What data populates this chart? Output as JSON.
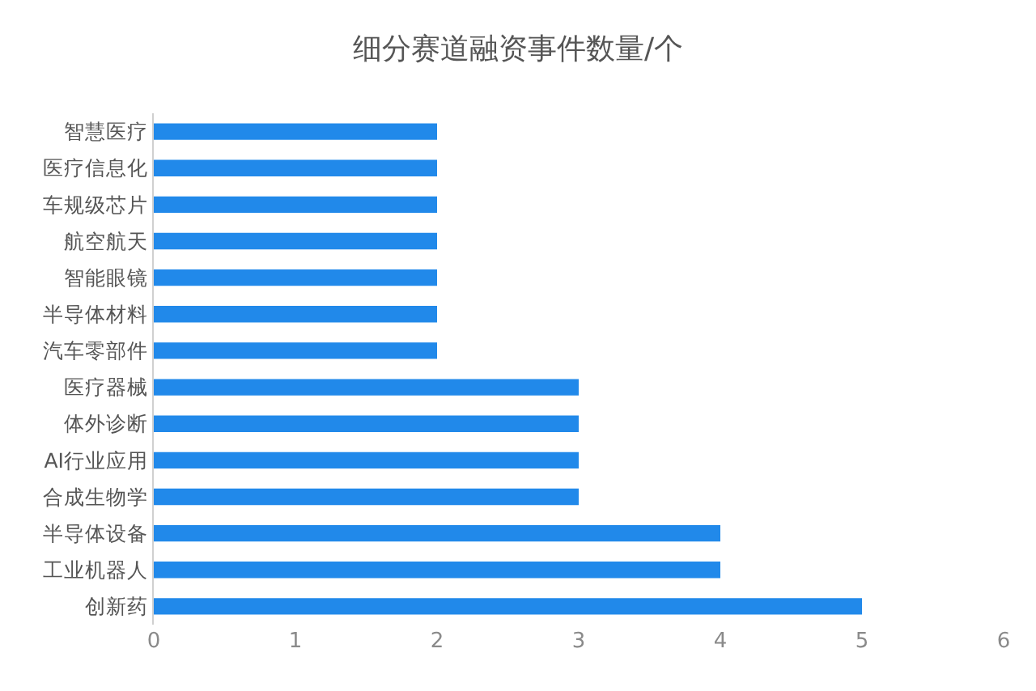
{
  "chart_data": {
    "type": "bar",
    "orientation": "horizontal",
    "title": "细分赛道融资事件数量/个",
    "categories": [
      "智慧医疗",
      "医疗信息化",
      "车规级芯片",
      "航空航天",
      "智能眼镜",
      "半导体材料",
      "汽车零部件",
      "医疗器械",
      "体外诊断",
      "AI行业应用",
      "合成生物学",
      "半导体设备",
      "工业机器人",
      "创新药"
    ],
    "values": [
      2,
      2,
      2,
      2,
      2,
      2,
      2,
      3,
      3,
      3,
      3,
      4,
      4,
      5
    ],
    "color": "#2189ea",
    "xlim": [
      0,
      6
    ],
    "xticks": [
      0,
      1,
      2,
      3,
      4,
      5,
      6
    ],
    "grid": false
  }
}
